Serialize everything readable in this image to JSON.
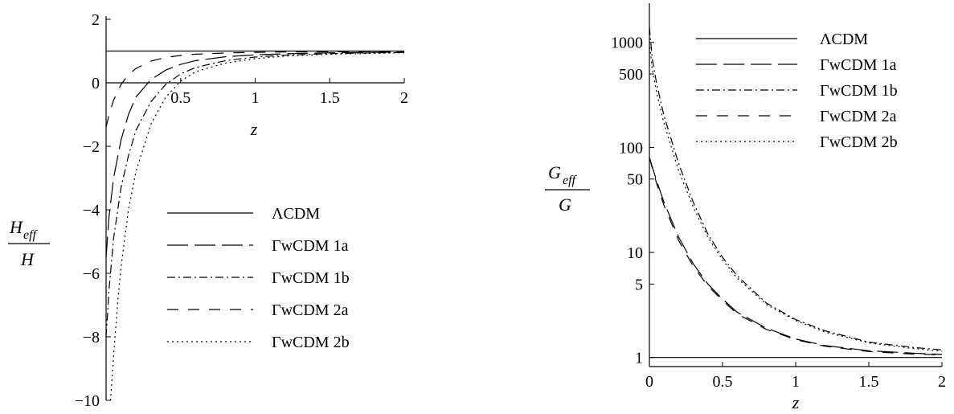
{
  "chart_data": [
    {
      "type": "line",
      "x_axis_label": "z",
      "y_axis_label": {
        "numerator": "H",
        "numerator_subscript": "eff",
        "denominator": "H"
      },
      "xlim": [
        0,
        2
      ],
      "ylim": [
        -10,
        2
      ],
      "x_ticks": [
        {
          "value": 0.5,
          "label": "0.5"
        },
        {
          "value": 1,
          "label": "1"
        },
        {
          "value": 1.5,
          "label": "1.5"
        },
        {
          "value": 2,
          "label": "2"
        }
      ],
      "y_ticks": [
        {
          "value": 2,
          "label": "2"
        },
        {
          "value": 0,
          "label": "0"
        },
        {
          "value": -2,
          "label": "−2"
        },
        {
          "value": -4,
          "label": "−4"
        },
        {
          "value": -6,
          "label": "−6"
        },
        {
          "value": -8,
          "label": "−8"
        },
        {
          "value": -10,
          "label": "−10"
        }
      ],
      "legend_position": "bottom-right",
      "series": [
        {
          "name": "ΛCDM",
          "style": "solid",
          "x": [
            0,
            0.5,
            1,
            1.5,
            2
          ],
          "y": [
            1,
            1,
            1,
            1,
            1
          ]
        },
        {
          "name": "ΓwCDM 1a",
          "style": "longdash",
          "x": [
            0.0,
            0.02,
            0.05,
            0.1,
            0.15,
            0.2,
            0.3,
            0.4,
            0.5,
            0.6,
            0.8,
            1.0,
            1.2,
            1.5,
            1.8,
            2.0
          ],
          "y": [
            -5.5,
            -4.2,
            -3.0,
            -1.8,
            -1.0,
            -0.45,
            0.1,
            0.4,
            0.58,
            0.7,
            0.82,
            0.88,
            0.915,
            0.945,
            0.96,
            0.965
          ]
        },
        {
          "name": "ΓwCDM 1b",
          "style": "dashdot",
          "x": [
            0.0,
            0.02,
            0.05,
            0.1,
            0.15,
            0.2,
            0.3,
            0.4,
            0.5,
            0.6,
            0.8,
            1.0,
            1.2,
            1.5,
            1.8,
            2.0
          ],
          "y": [
            -8.0,
            -6.5,
            -4.9,
            -3.3,
            -2.3,
            -1.5,
            -0.6,
            -0.05,
            0.28,
            0.48,
            0.7,
            0.81,
            0.87,
            0.92,
            0.945,
            0.955
          ]
        },
        {
          "name": "ΓwCDM 2a",
          "style": "dash",
          "x": [
            0.0,
            0.02,
            0.05,
            0.1,
            0.15,
            0.2,
            0.3,
            0.4,
            0.5,
            0.6,
            0.8,
            1.0,
            1.2,
            1.5,
            1.8,
            2.0
          ],
          "y": [
            -1.4,
            -1.0,
            -0.55,
            -0.05,
            0.25,
            0.45,
            0.68,
            0.8,
            0.86,
            0.9,
            0.94,
            0.96,
            0.97,
            0.98,
            0.985,
            0.99
          ]
        },
        {
          "name": "ΓwCDM 2b",
          "style": "dotted",
          "x": [
            0.03,
            0.05,
            0.08,
            0.1,
            0.15,
            0.2,
            0.3,
            0.4,
            0.5,
            0.6,
            0.8,
            1.0,
            1.2,
            1.5,
            1.8,
            2.0
          ],
          "y": [
            -10.0,
            -8.6,
            -6.8,
            -5.8,
            -4.0,
            -2.8,
            -1.3,
            -0.45,
            0.05,
            0.35,
            0.62,
            0.76,
            0.84,
            0.9,
            0.93,
            0.945
          ]
        }
      ]
    },
    {
      "type": "line",
      "y_scale": "log",
      "x_axis_label": "z",
      "y_axis_label": {
        "numerator": "G",
        "numerator_subscript": "eff",
        "denominator": "G"
      },
      "xlim": [
        0,
        2
      ],
      "ylim": [
        0.82,
        2200
      ],
      "x_ticks": [
        {
          "value": 0,
          "label": "0"
        },
        {
          "value": 0.5,
          "label": "0.5"
        },
        {
          "value": 1,
          "label": "1"
        },
        {
          "value": 1.5,
          "label": "1.5"
        },
        {
          "value": 2,
          "label": "2"
        }
      ],
      "y_ticks": [
        {
          "value": 1000,
          "label": "1000"
        },
        {
          "value": 500,
          "label": "500"
        },
        {
          "value": 100,
          "label": "100"
        },
        {
          "value": 50,
          "label": "50"
        },
        {
          "value": 10,
          "label": "10"
        },
        {
          "value": 5,
          "label": "5"
        },
        {
          "value": 1,
          "label": "1"
        }
      ],
      "legend_position": "top-right",
      "series": [
        {
          "name": "ΛCDM",
          "style": "solid",
          "x": [
            0,
            0.5,
            1,
            1.5,
            2
          ],
          "y": [
            1,
            1,
            1,
            1,
            1
          ]
        },
        {
          "name": "ΓwCDM 1a",
          "style": "longdash",
          "x": [
            0.0,
            0.05,
            0.1,
            0.2,
            0.3,
            0.4,
            0.5,
            0.6,
            0.8,
            1.0,
            1.2,
            1.5,
            1.8,
            2.0
          ],
          "y": [
            80,
            48,
            30,
            14,
            7.8,
            5.0,
            3.6,
            2.7,
            1.9,
            1.5,
            1.3,
            1.16,
            1.1,
            1.07
          ]
        },
        {
          "name": "ΓwCDM 1b",
          "style": "dashdot",
          "x": [
            0.0,
            0.02,
            0.05,
            0.1,
            0.2,
            0.3,
            0.4,
            0.5,
            0.6,
            0.8,
            1.0,
            1.2,
            1.5,
            1.8,
            2.0
          ],
          "y": [
            1400,
            700,
            400,
            200,
            70,
            30,
            15,
            9,
            6,
            3.3,
            2.3,
            1.8,
            1.4,
            1.25,
            1.18
          ]
        },
        {
          "name": "ΓwCDM 2a",
          "style": "dash",
          "x": [
            0.0,
            0.05,
            0.1,
            0.2,
            0.3,
            0.4,
            0.5,
            0.6,
            0.8,
            1.0,
            1.2,
            1.5,
            1.8,
            2.0
          ],
          "y": [
            80,
            45,
            28,
            13,
            7.4,
            4.8,
            3.5,
            2.6,
            1.85,
            1.48,
            1.28,
            1.14,
            1.08,
            1.06
          ]
        },
        {
          "name": "ΓwCDM 2b",
          "style": "dotted",
          "x": [
            0.0,
            0.02,
            0.05,
            0.1,
            0.2,
            0.3,
            0.4,
            0.5,
            0.6,
            0.8,
            1.0,
            1.2,
            1.5,
            1.8,
            2.0
          ],
          "y": [
            1000,
            550,
            330,
            170,
            60,
            27,
            14,
            8.5,
            5.7,
            3.2,
            2.25,
            1.75,
            1.38,
            1.22,
            1.15
          ]
        }
      ]
    }
  ]
}
